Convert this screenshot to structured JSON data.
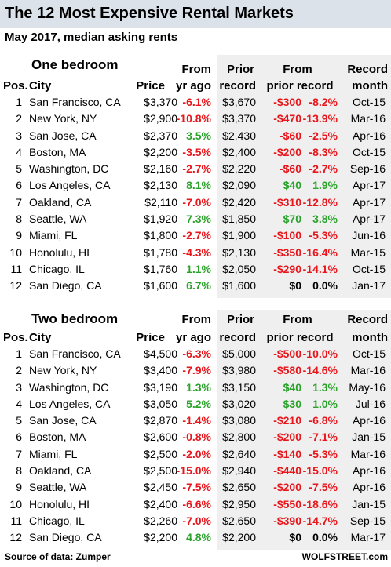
{
  "title": "The 12 Most Expensive Rental Markets",
  "subtitle": "May 2017, median asking rents",
  "colors": {
    "negative": "#e8151b",
    "positive": "#2aa32a",
    "title_band": "#dbe2ea",
    "shaded": "#efefef"
  },
  "headers": {
    "pos": "Pos.",
    "city": "City",
    "price": "Price",
    "from": "From",
    "yr_ago": "yr ago",
    "prior": "Prior",
    "record": "record",
    "from_prior": "From",
    "prior_record": "prior record",
    "record_top": "Record",
    "month": "month"
  },
  "sections": [
    {
      "name": "One bedroom",
      "rows": [
        {
          "pos": "1",
          "city": "San Francisco, CA",
          "price": "$3,370",
          "yr": "-6.1%",
          "prior": "$3,670",
          "amt": "-$300",
          "pct": "-8.2%",
          "month": "Oct-15"
        },
        {
          "pos": "2",
          "city": "New York, NY",
          "price": "$2,900",
          "yr": "-10.8%",
          "prior": "$3,370",
          "amt": "-$470",
          "pct": "-13.9%",
          "month": "Mar-16"
        },
        {
          "pos": "3",
          "city": "San Jose, CA",
          "price": "$2,370",
          "yr": "3.5%",
          "prior": "$2,430",
          "amt": "-$60",
          "pct": "-2.5%",
          "month": "Apr-16"
        },
        {
          "pos": "4",
          "city": "Boston, MA",
          "price": "$2,200",
          "yr": "-3.5%",
          "prior": "$2,400",
          "amt": "-$200",
          "pct": "-8.3%",
          "month": "Oct-15"
        },
        {
          "pos": "5",
          "city": "Washington, DC",
          "price": "$2,160",
          "yr": "-2.7%",
          "prior": "$2,220",
          "amt": "-$60",
          "pct": "-2.7%",
          "month": "Sep-16"
        },
        {
          "pos": "6",
          "city": "Los Angeles, CA",
          "price": "$2,130",
          "yr": "8.1%",
          "prior": "$2,090",
          "amt": "$40",
          "pct": "1.9%",
          "month": "Apr-17"
        },
        {
          "pos": "7",
          "city": "Oakland, CA",
          "price": "$2,110",
          "yr": "-7.0%",
          "prior": "$2,420",
          "amt": "-$310",
          "pct": "-12.8%",
          "month": "Apr-17"
        },
        {
          "pos": "8",
          "city": "Seattle, WA",
          "price": "$1,920",
          "yr": "7.3%",
          "prior": "$1,850",
          "amt": "$70",
          "pct": "3.8%",
          "month": "Apr-17"
        },
        {
          "pos": "9",
          "city": "Miami, FL",
          "price": "$1,800",
          "yr": "-2.7%",
          "prior": "$1,900",
          "amt": "-$100",
          "pct": "-5.3%",
          "month": "Jun-16"
        },
        {
          "pos": "10",
          "city": "Honolulu, HI",
          "price": "$1,780",
          "yr": "-4.3%",
          "prior": "$2,130",
          "amt": "-$350",
          "pct": "-16.4%",
          "month": "Mar-15"
        },
        {
          "pos": "11",
          "city": "Chicago, IL",
          "price": "$1,760",
          "yr": "1.1%",
          "prior": "$2,050",
          "amt": "-$290",
          "pct": "-14.1%",
          "month": "Oct-15"
        },
        {
          "pos": "12",
          "city": "San Diego, CA",
          "price": "$1,600",
          "yr": "6.7%",
          "prior": "$1,600",
          "amt": "$0",
          "pct": "0.0%",
          "month": "Jan-17"
        }
      ]
    },
    {
      "name": "Two bedroom",
      "rows": [
        {
          "pos": "1",
          "city": "San Francisco, CA",
          "price": "$4,500",
          "yr": "-6.3%",
          "prior": "$5,000",
          "amt": "-$500",
          "pct": "-10.0%",
          "month": "Oct-15"
        },
        {
          "pos": "2",
          "city": "New York, NY",
          "price": "$3,400",
          "yr": "-7.9%",
          "prior": "$3,980",
          "amt": "-$580",
          "pct": "-14.6%",
          "month": "Mar-16"
        },
        {
          "pos": "3",
          "city": "Washington, DC",
          "price": "$3,190",
          "yr": "1.3%",
          "prior": "$3,150",
          "amt": "$40",
          "pct": "1.3%",
          "month": "May-16"
        },
        {
          "pos": "4",
          "city": "Los Angeles, CA",
          "price": "$3,050",
          "yr": "5.2%",
          "prior": "$3,020",
          "amt": "$30",
          "pct": "1.0%",
          "month": "Jul-16"
        },
        {
          "pos": "5",
          "city": "San Jose, CA",
          "price": "$2,870",
          "yr": "-1.4%",
          "prior": "$3,080",
          "amt": "-$210",
          "pct": "-6.8%",
          "month": "Apr-16"
        },
        {
          "pos": "6",
          "city": "Boston, MA",
          "price": "$2,600",
          "yr": "-0.8%",
          "prior": "$2,800",
          "amt": "-$200",
          "pct": "-7.1%",
          "month": "Jan-15"
        },
        {
          "pos": "7",
          "city": "Miami, FL",
          "price": "$2,500",
          "yr": "-2.0%",
          "prior": "$2,640",
          "amt": "-$140",
          "pct": "-5.3%",
          "month": "Mar-16"
        },
        {
          "pos": "8",
          "city": "Oakland, CA",
          "price": "$2,500",
          "yr": "-15.0%",
          "prior": "$2,940",
          "amt": "-$440",
          "pct": "-15.0%",
          "month": "Apr-16"
        },
        {
          "pos": "9",
          "city": "Seattle, WA",
          "price": "$2,450",
          "yr": "-7.5%",
          "prior": "$2,650",
          "amt": "-$200",
          "pct": "-7.5%",
          "month": "Apr-16"
        },
        {
          "pos": "10",
          "city": "Honolulu, HI",
          "price": "$2,400",
          "yr": "-6.6%",
          "prior": "$2,950",
          "amt": "-$550",
          "pct": "-18.6%",
          "month": "Jan-15"
        },
        {
          "pos": "11",
          "city": "Chicago, IL",
          "price": "$2,260",
          "yr": "-7.0%",
          "prior": "$2,650",
          "amt": "-$390",
          "pct": "-14.7%",
          "month": "Sep-15"
        },
        {
          "pos": "12",
          "city": "San Diego, CA",
          "price": "$2,200",
          "yr": "4.8%",
          "prior": "$2,200",
          "amt": "$0",
          "pct": "0.0%",
          "month": "Mar-17"
        }
      ]
    }
  ],
  "footer": {
    "source": "Source of data: Zumper",
    "brand": "WOLFSTREET.com"
  }
}
